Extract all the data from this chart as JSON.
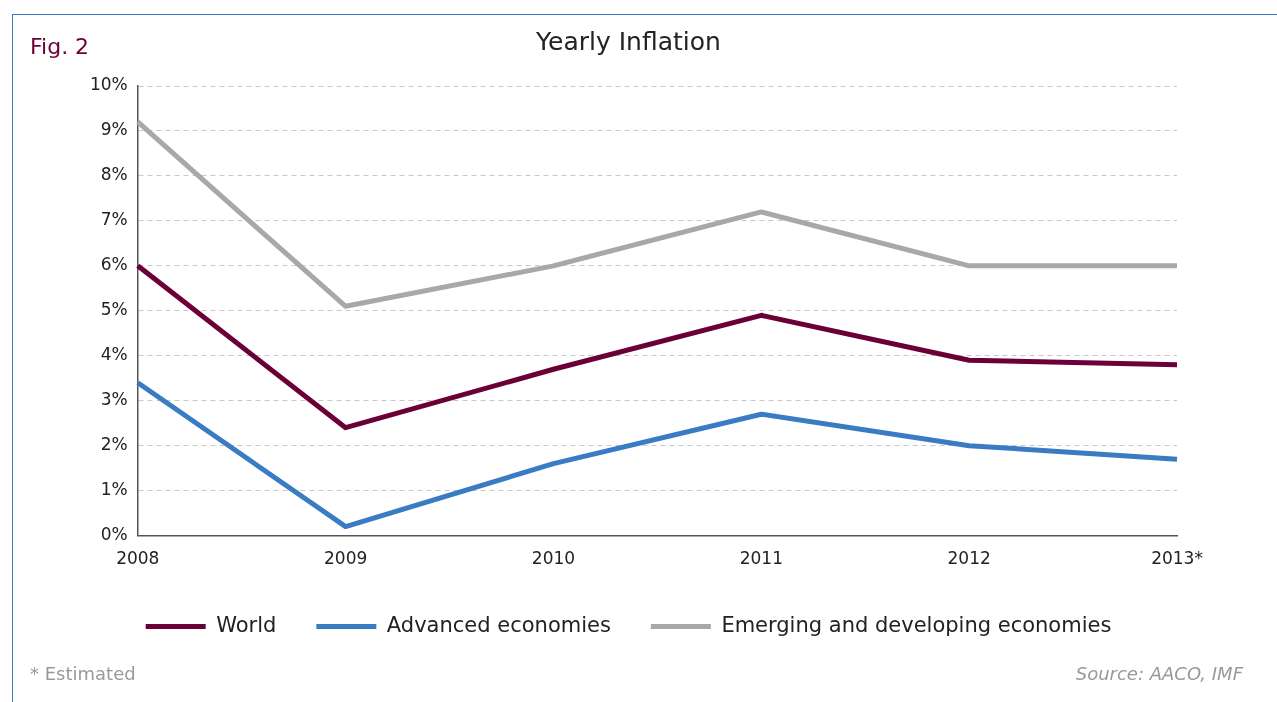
{
  "chart_data": {
    "type": "line",
    "title": "Yearly Inflation",
    "categories": [
      "2008",
      "2009",
      "2010",
      "2011",
      "2012",
      "2013*"
    ],
    "series": [
      {
        "name": "World",
        "color": "#6b0036",
        "values": [
          6.0,
          2.4,
          3.7,
          4.9,
          3.9,
          3.8
        ]
      },
      {
        "name": "Advanced economies",
        "color": "#3a7cc4",
        "values": [
          3.4,
          0.2,
          1.6,
          2.7,
          2.0,
          1.7
        ]
      },
      {
        "name": "Emerging and developing economies",
        "color": "#a8a8ac",
        "values": [
          9.2,
          5.1,
          6.0,
          7.2,
          6.0,
          6.0
        ]
      }
    ],
    "ylim": [
      0,
      10
    ],
    "yticks": [
      {
        "value": 0,
        "label": "0%"
      },
      {
        "value": 1,
        "label": "1%"
      },
      {
        "value": 2,
        "label": "2%"
      },
      {
        "value": 3,
        "label": "3%"
      },
      {
        "value": 4,
        "label": "4%"
      },
      {
        "value": 5,
        "label": "5%"
      },
      {
        "value": 6,
        "label": "6%"
      },
      {
        "value": 7,
        "label": "7%"
      },
      {
        "value": 8,
        "label": "8%"
      },
      {
        "value": 9,
        "label": "9%"
      },
      {
        "value": 10,
        "label": "10%"
      }
    ],
    "grid": "y",
    "legend": "bottom",
    "marker": "none",
    "line_style": "solid",
    "annotations": [
      "Fig. 2",
      "* Estimated",
      "Source: AACO, IMF"
    ]
  }
}
